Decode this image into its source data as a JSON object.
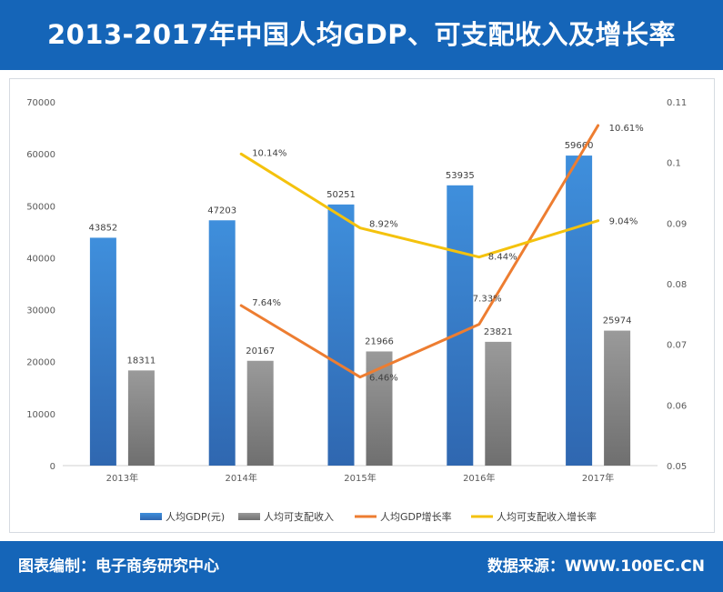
{
  "header": {
    "title": "2013-2017年中国人均GDP、可支配收入及增长率"
  },
  "footer": {
    "left_label": "图表编制：",
    "left_value": "电子商务研究中心",
    "right_label": "数据来源：",
    "right_value": "WWW.100EC.CN"
  },
  "colors": {
    "header_bg": "#1565b8",
    "gdp_bar": "#3f8fdc",
    "income_bar": "#8c8c8c",
    "gdp_growth_line": "#ed7d31",
    "income_growth_line": "#f4c20d"
  },
  "chart_data": {
    "type": "bar",
    "title": "2013-2017年中国人均GDP、可支配收入及增长率",
    "categories": [
      "2013年",
      "2014年",
      "2015年",
      "2016年",
      "2017年"
    ],
    "left_axis": {
      "min": 0,
      "max": 70000,
      "ticks": [
        "0",
        "10000",
        "20000",
        "30000",
        "40000",
        "50000",
        "60000",
        "70000"
      ]
    },
    "right_axis": {
      "min": 0.05,
      "max": 0.11,
      "ticks": [
        "0.05",
        "0.06",
        "0.07",
        "0.08",
        "0.09",
        "0.1",
        "0.11"
      ]
    },
    "grid": false,
    "legend_position": "bottom",
    "series": [
      {
        "name": "人均GDP(元)",
        "type": "bar",
        "axis": "left",
        "values": [
          43852,
          47203,
          50251,
          53935,
          59660
        ],
        "labels": [
          "43852",
          "47203",
          "50251",
          "53935",
          "59660"
        ]
      },
      {
        "name": "人均可支配收入",
        "type": "bar",
        "axis": "left",
        "values": [
          18311,
          20167,
          21966,
          23821,
          25974
        ],
        "labels": [
          "18311",
          "20167",
          "21966",
          "23821",
          "25974"
        ]
      },
      {
        "name": "人均GDP增长率",
        "type": "line",
        "axis": "right",
        "values": [
          null,
          0.0764,
          0.0646,
          0.0733,
          0.1061
        ],
        "labels": [
          "",
          "7.64%",
          "6.46%",
          "7.33%",
          "10.61%"
        ]
      },
      {
        "name": "人均可支配收入增长率",
        "type": "line",
        "axis": "right",
        "values": [
          null,
          0.1014,
          0.0892,
          0.0844,
          0.0904
        ],
        "labels": [
          "",
          "10.14%",
          "8.92%",
          "8.44%",
          "9.04%"
        ]
      }
    ]
  }
}
